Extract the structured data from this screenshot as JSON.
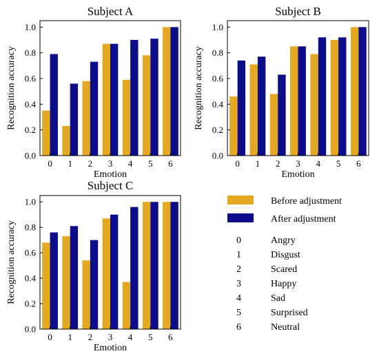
{
  "colors": {
    "before": "#E5A823",
    "after": "#0D0D8A"
  },
  "chart_data": [
    {
      "type": "bar",
      "title": "Subject A",
      "xlabel": "Emotion",
      "ylabel": "Recognition accuracy",
      "categories": [
        "0",
        "1",
        "2",
        "3",
        "4",
        "5",
        "6"
      ],
      "yticks": [
        "0.0",
        "0.2",
        "0.4",
        "0.6",
        "0.8",
        "1.0"
      ],
      "ylim": [
        0,
        1.05
      ],
      "series": [
        {
          "name": "Before adjustment",
          "values": [
            0.35,
            0.23,
            0.58,
            0.87,
            0.59,
            0.78,
            1.0
          ]
        },
        {
          "name": "After adjustment",
          "values": [
            0.79,
            0.56,
            0.73,
            0.87,
            0.9,
            0.91,
            1.0
          ]
        }
      ]
    },
    {
      "type": "bar",
      "title": "Subject B",
      "xlabel": "Emotion",
      "ylabel": "Recognition accuracy",
      "categories": [
        "0",
        "1",
        "2",
        "3",
        "4",
        "5",
        "6"
      ],
      "yticks": [
        "0.0",
        "0.2",
        "0.4",
        "0.6",
        "0.8",
        "1.0"
      ],
      "ylim": [
        0,
        1.05
      ],
      "series": [
        {
          "name": "Before adjustment",
          "values": [
            0.46,
            0.71,
            0.48,
            0.85,
            0.79,
            0.9,
            1.0
          ]
        },
        {
          "name": "After adjustment",
          "values": [
            0.74,
            0.77,
            0.63,
            0.85,
            0.92,
            0.92,
            1.0
          ]
        }
      ]
    },
    {
      "type": "bar",
      "title": "Subject C",
      "xlabel": "Emotion",
      "ylabel": "Recognition accuracy",
      "categories": [
        "0",
        "1",
        "2",
        "3",
        "4",
        "5",
        "6"
      ],
      "yticks": [
        "0.0",
        "0.2",
        "0.4",
        "0.6",
        "0.8",
        "1.0"
      ],
      "ylim": [
        0,
        1.05
      ],
      "series": [
        {
          "name": "Before adjustment",
          "values": [
            0.68,
            0.73,
            0.54,
            0.87,
            0.37,
            1.0,
            1.0
          ]
        },
        {
          "name": "After adjustment",
          "values": [
            0.76,
            0.81,
            0.7,
            0.9,
            0.96,
            1.0,
            1.0
          ]
        }
      ]
    }
  ],
  "legend": {
    "series": [
      "Before adjustment",
      "After adjustment"
    ],
    "emotions": [
      {
        "code": "0",
        "name": "Angry"
      },
      {
        "code": "1",
        "name": "Disgust"
      },
      {
        "code": "2",
        "name": "Scared"
      },
      {
        "code": "3",
        "name": "Happy"
      },
      {
        "code": "4",
        "name": "Sad"
      },
      {
        "code": "5",
        "name": "Surprised"
      },
      {
        "code": "6",
        "name": "Neutral"
      }
    ]
  }
}
